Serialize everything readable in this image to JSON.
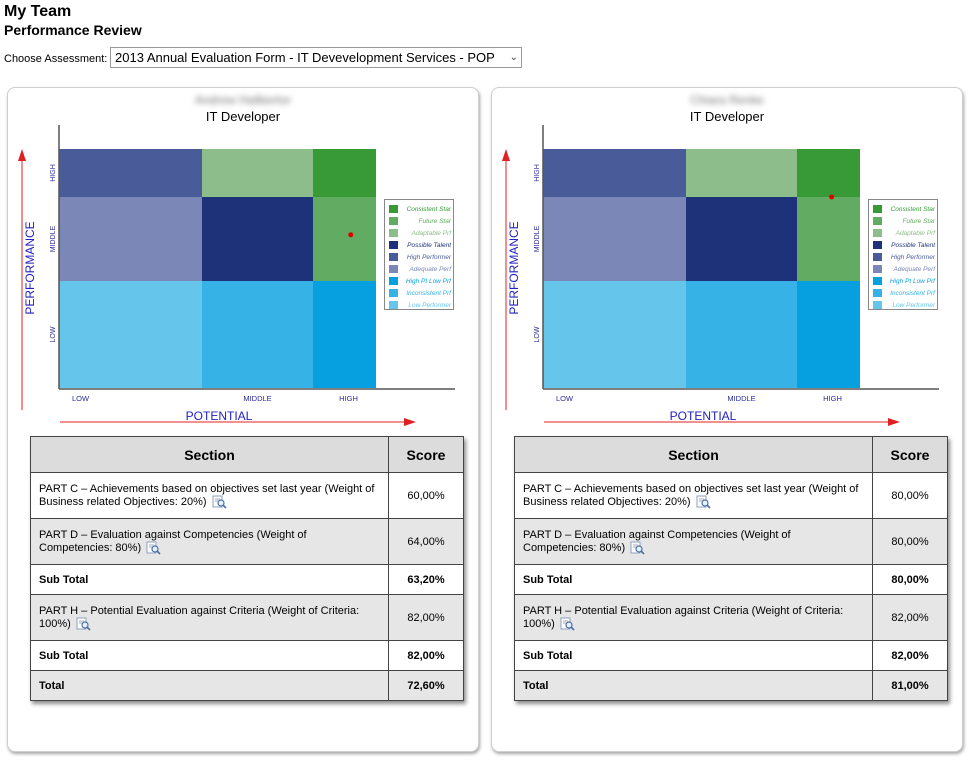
{
  "page": {
    "title": "My Team",
    "subtitle": "Performance Review"
  },
  "assessment": {
    "label": "Choose Assessment:",
    "selected": "2013 Annual Evaluation Form - IT Devevelopment Services - POP"
  },
  "grid": {
    "y_axis_label": "PERFORMANCE",
    "x_axis_label": "POTENTIAL",
    "y_levels": [
      "HIGH",
      "MIDDLE",
      "LOW"
    ],
    "x_levels": [
      "LOW",
      "MIDDLE",
      "HIGH"
    ],
    "colors": {
      "high_low": "#4a5b9a",
      "high_mid": "#8cbd8a",
      "high_high": "#379a37",
      "mid_low": "#7b87b7",
      "mid_mid": "#1d3278",
      "mid_high": "#62ab62",
      "low_low": "#66c5ea",
      "low_mid": "#36b2e6",
      "low_high": "#069fe0"
    }
  },
  "legend": [
    {
      "label": "Consistent Star",
      "color": "#379a37",
      "text_color": "#379a37"
    },
    {
      "label": "Future Star",
      "color": "#62ab62",
      "text_color": "#62ab62"
    },
    {
      "label": "Adaptable Prf",
      "color": "#8cbd8a",
      "text_color": "#8cbd8a"
    },
    {
      "label": "Possible Talent",
      "color": "#1d3278",
      "text_color": "#1d3278"
    },
    {
      "label": "High Performer",
      "color": "#4a5b9a",
      "text_color": "#4a5b9a"
    },
    {
      "label": "Adequate Perf",
      "color": "#7b87b7",
      "text_color": "#7b87b7"
    },
    {
      "label": "High Pt Low Prf",
      "color": "#069fe0",
      "text_color": "#069fe0"
    },
    {
      "label": "Inconsistent Prf",
      "color": "#36b2e6",
      "text_color": "#36b2e6"
    },
    {
      "label": "Low Performer",
      "color": "#66c5ea",
      "text_color": "#66c5ea"
    }
  ],
  "table_headers": {
    "section": "Section",
    "score": "Score"
  },
  "employees": [
    {
      "name": "Andrew Hallbertor",
      "role": "IT Developer",
      "point": {
        "potential": 2.6,
        "performance": 1.55
      },
      "rows": [
        {
          "section": "PART C – Achievements based on objectives set last year (Weight of Business related Objectives: 20%)",
          "score": "60,00%"
        },
        {
          "section": "PART D – Evaluation against Competencies (Weight of Competencies: 80%)",
          "score": "64,00%"
        },
        {
          "section": "Sub Total",
          "score": "63,20%"
        },
        {
          "section": "PART H – Potential Evaluation against Criteria (Weight of Criteria: 100%)",
          "score": "82,00%"
        },
        {
          "section": "Sub Total",
          "score": "82,00%"
        },
        {
          "section": "Total",
          "score": "72,60%"
        }
      ]
    },
    {
      "name": "Chiara Renke",
      "role": "IT Developer",
      "point": {
        "potential": 2.55,
        "performance": 2.0
      },
      "rows": [
        {
          "section": "PART C – Achievements based on objectives set last year (Weight of Business related Objectives: 20%)",
          "score": "80,00%"
        },
        {
          "section": "PART D – Evaluation against Competencies (Weight of Competencies: 80%)",
          "score": "80,00%"
        },
        {
          "section": "Sub Total",
          "score": "80,00%"
        },
        {
          "section": "PART H – Potential Evaluation against Criteria (Weight of Criteria: 100%)",
          "score": "82,00%"
        },
        {
          "section": "Sub Total",
          "score": "82,00%"
        },
        {
          "section": "Total",
          "score": "81,00%"
        }
      ]
    }
  ]
}
